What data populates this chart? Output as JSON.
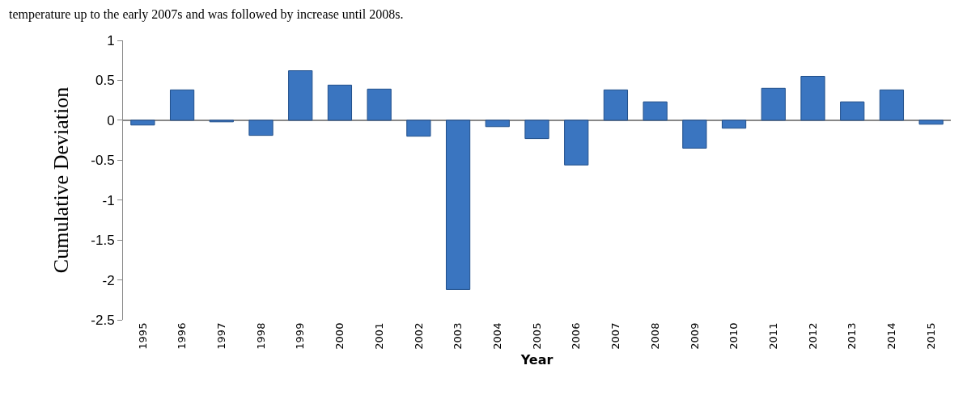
{
  "chart_data": {
    "type": "bar",
    "xlabel": "Year",
    "ylabel": "Cumulative Deviation",
    "annotations": [
      "temperature up to the early 2007s and was followed by increase until 2008s."
    ],
    "categories": [
      "1995",
      "1996",
      "1997",
      "1998",
      "1999",
      "2000",
      "2001",
      "2002",
      "2003",
      "2004",
      "2005",
      "2006",
      "2007",
      "2008",
      "2009",
      "2010",
      "2011",
      "2012",
      "2013",
      "2014",
      "2015"
    ],
    "values": [
      -0.06,
      0.38,
      -0.02,
      -0.19,
      0.62,
      0.44,
      0.39,
      -0.2,
      -2.12,
      -0.08,
      -0.23,
      -0.56,
      0.38,
      0.23,
      -0.35,
      -0.1,
      0.4,
      0.55,
      0.23,
      0.38,
      -0.05
    ],
    "color": "#3a75c0",
    "ylim": [
      -2.5,
      1
    ],
    "yticks": [
      -2.5,
      -2,
      -1.5,
      -1,
      -0.5,
      0,
      0.5,
      1
    ],
    "legend": false
  }
}
